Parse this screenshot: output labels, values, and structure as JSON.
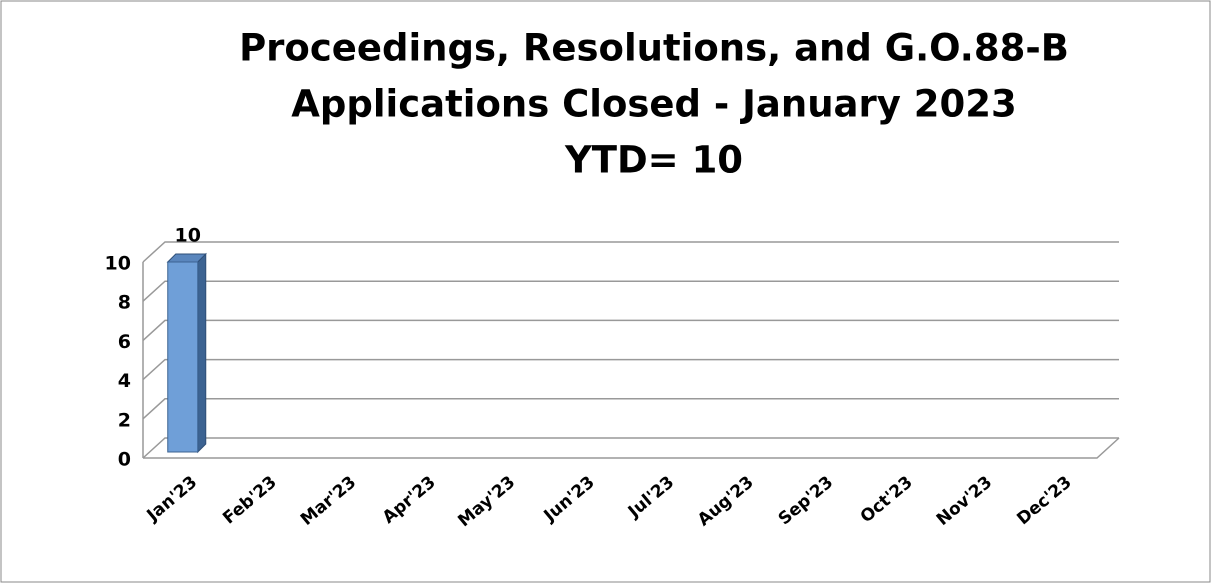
{
  "chart_data": {
    "type": "bar3d",
    "title": [
      "Proceedings, Resolutions, and G.O.88-B",
      "Applications Closed - January 2023"
    ],
    "subtitle": "YTD= 10",
    "categories": [
      "Jan'23",
      "Feb'23",
      "Mar'23",
      "Apr'23",
      "May'23",
      "Jun'23",
      "Jul'23",
      "Aug'23",
      "Sep'23",
      "Oct'23",
      "Nov'23",
      "Dec'23"
    ],
    "values": [
      10,
      null,
      null,
      null,
      null,
      null,
      null,
      null,
      null,
      null,
      null,
      null
    ],
    "color": "#6f9fd8",
    "ylim": [
      0,
      10
    ],
    "yticks": [
      0,
      2,
      4,
      6,
      8,
      10
    ],
    "grid": true
  }
}
